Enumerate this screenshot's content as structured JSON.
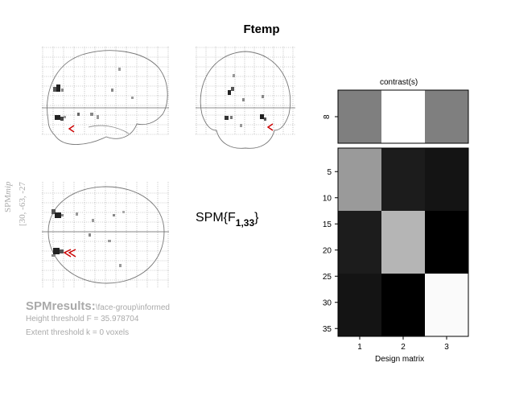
{
  "figure_title": "Ftemp",
  "mip_label": {
    "prefix": "SPM",
    "suffix": "mip"
  },
  "coordinates": "[30, -63, -27",
  "statistic": {
    "base": "SPM{F",
    "sub": "1,33",
    "close": "}"
  },
  "results": {
    "label": "SPMresults:",
    "path": "\\face-group\\informed",
    "height_threshold": "Height threshold F = 35.978704",
    "extent_threshold": "Extent threshold k = 0 voxels"
  },
  "contrast": {
    "title": "contrast(s)",
    "ytick": "8",
    "weights_gray": [
      "#7f7f7f",
      "#ffffff",
      "#7f7f7f"
    ]
  },
  "design_matrix": {
    "xlabel": "Design matrix",
    "xticks": [
      "1",
      "2",
      "3"
    ],
    "yticks": [
      "5",
      "10",
      "15",
      "20",
      "25",
      "30",
      "35"
    ],
    "blocks": [
      [
        "#9a9a9a",
        "#1c1c1c",
        "#141414"
      ],
      [
        "#1c1c1c",
        "#b5b5b5",
        "#000000"
      ],
      [
        "#141414",
        "#000000",
        "#fafafa"
      ]
    ]
  },
  "cursor_color": "#cc0000"
}
